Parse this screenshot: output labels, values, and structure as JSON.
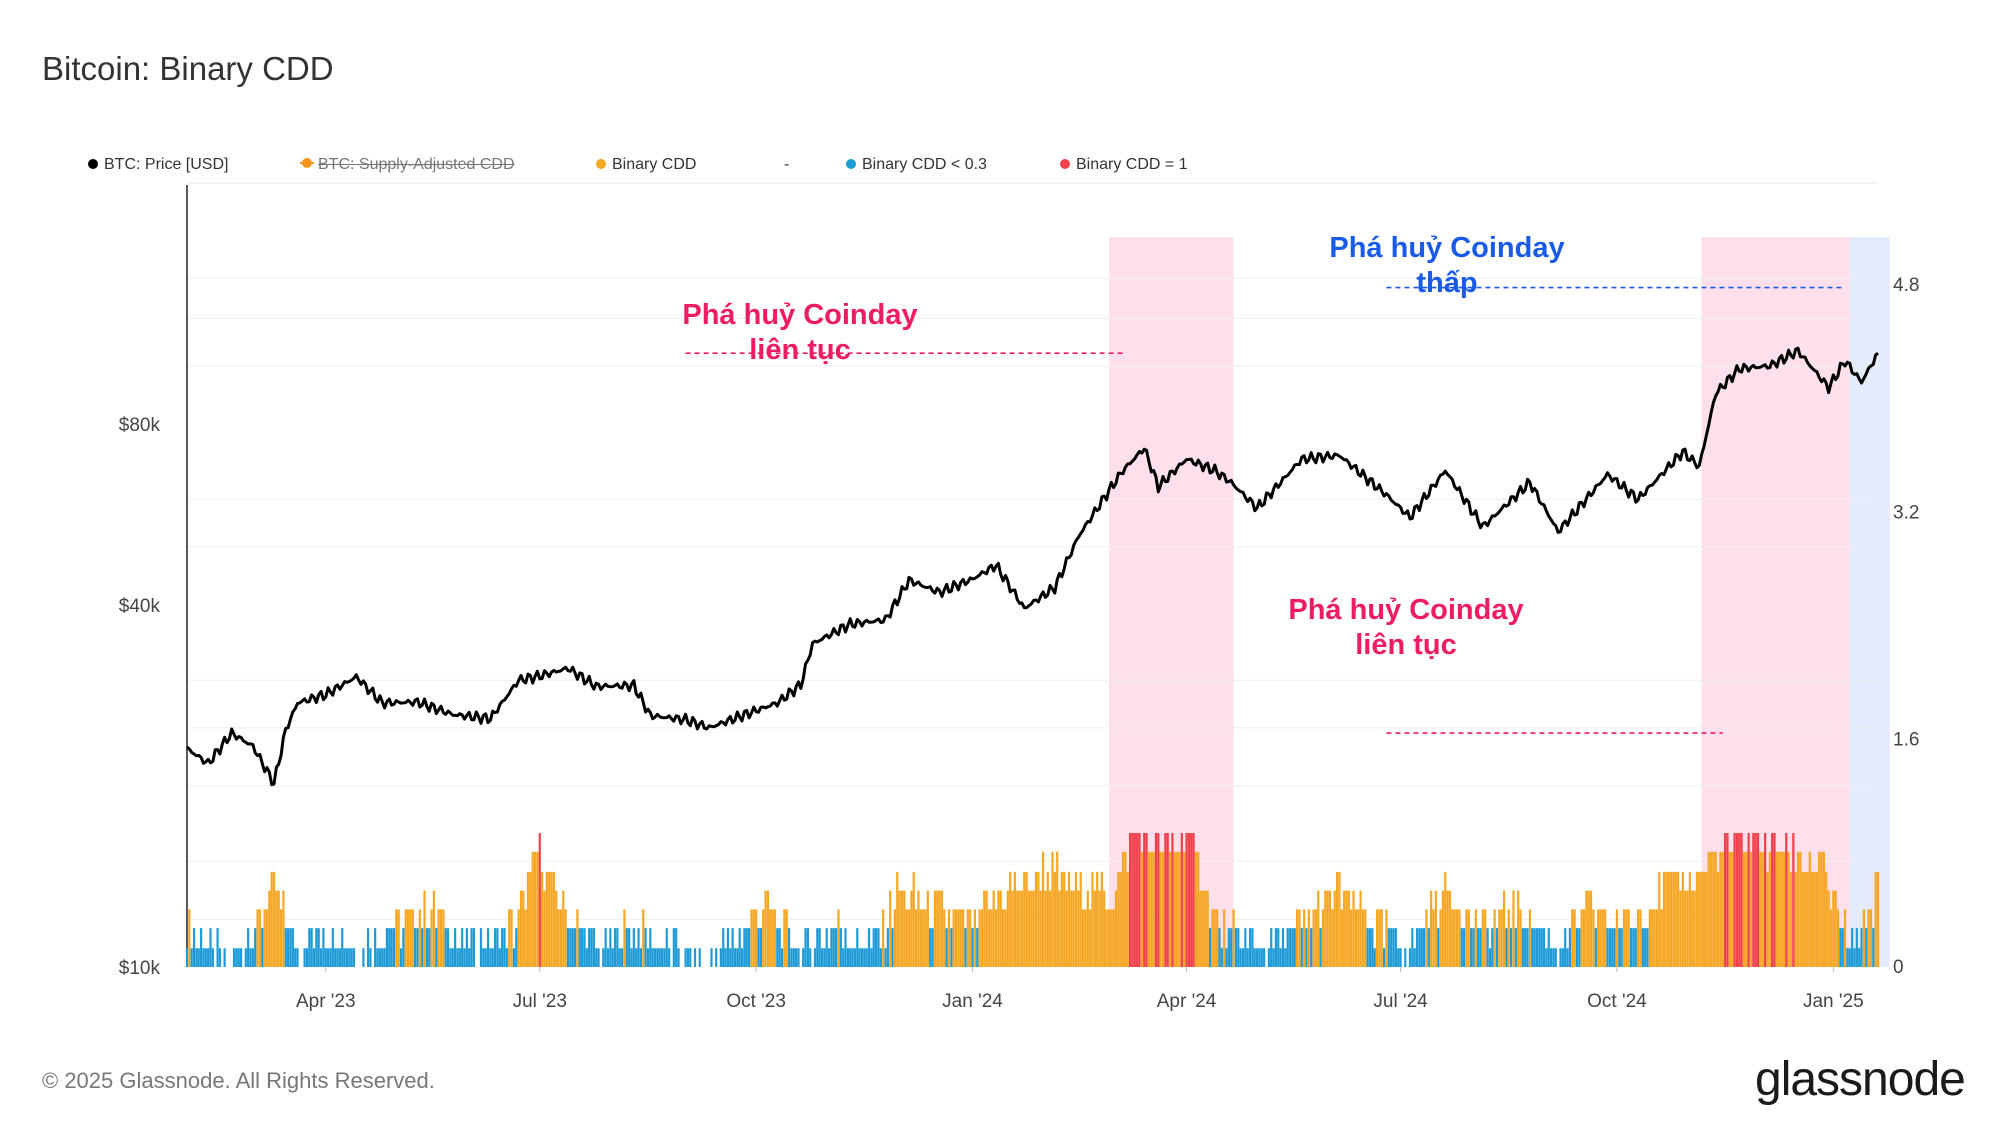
{
  "title": "Bitcoin: Binary CDD",
  "footer": "© 2025 Glassnode. All Rights Reserved.",
  "logo": "glassnode",
  "colors": {
    "price": "#000000",
    "supply_adjusted": "#f7931a",
    "binary_cdd": "#f5a623",
    "binary_low": "#1e9bd7",
    "binary_one": "#f0404a",
    "pink_band": "#fde0ec",
    "blue_band": "#e3ecfd",
    "anno_red": "#ee1c64",
    "anno_blue": "#1a5ae8",
    "grid": "#eeeeee"
  },
  "legend": [
    {
      "label": "BTC: Price [USD]",
      "color": "#000000",
      "style": "dot",
      "hidden": false
    },
    {
      "label": "BTC: Supply-Adjusted CDD",
      "color": "#f7931a",
      "style": "dash-dot",
      "hidden": true
    },
    {
      "label": "Binary CDD",
      "color": "#f5a623",
      "style": "dot",
      "hidden": false
    },
    {
      "label": "-",
      "color": "",
      "style": "none",
      "hidden": false
    },
    {
      "label": "Binary CDD < 0.3",
      "color": "#1e9bd7",
      "style": "dot",
      "hidden": false
    },
    {
      "label": "Binary CDD = 1",
      "color": "#f0404a",
      "style": "dot",
      "hidden": false
    }
  ],
  "annotations": [
    {
      "text": [
        "Phá huỷ Coinday",
        "liên tục"
      ],
      "color": "#ee1c64",
      "line_from": "2023-09-01",
      "line_to": "2024-03-06",
      "price_level": 105000
    },
    {
      "text": [
        "Phá huỷ Coinday",
        "thấp"
      ],
      "color": "#1a5ae8",
      "line_from": "2024-06-25",
      "line_to": "2025-01-06",
      "price_level": 135000
    },
    {
      "text": [
        "Phá huỷ Coinday",
        "liên tục"
      ],
      "color": "#ee1c64",
      "line_from": "2024-06-25",
      "line_to": "2024-11-15",
      "price_level": 24500
    }
  ],
  "chart_data": {
    "type": "line",
    "title": "Bitcoin: Binary CDD",
    "x_range": [
      "2023-02-01",
      "2025-01-20"
    ],
    "x_ticks": [
      {
        "date": "2023-04-01",
        "label": "Apr '23"
      },
      {
        "date": "2023-07-01",
        "label": "Jul '23"
      },
      {
        "date": "2023-10-01",
        "label": "Oct '23"
      },
      {
        "date": "2024-01-01",
        "label": "Jan '24"
      },
      {
        "date": "2024-04-01",
        "label": "Apr '24"
      },
      {
        "date": "2024-07-01",
        "label": "Jul '24"
      },
      {
        "date": "2024-10-01",
        "label": "Oct '24"
      },
      {
        "date": "2025-01-01",
        "label": "Jan '25"
      }
    ],
    "y_left": {
      "scale": "log",
      "range": [
        10000,
        200000
      ],
      "ticks": [
        {
          "value": 10000,
          "label": "$10k"
        },
        {
          "value": 40000,
          "label": "$40k"
        },
        {
          "value": 80000,
          "label": "$80k"
        }
      ]
    },
    "y_right": {
      "scale": "linear",
      "range": [
        0,
        5.5
      ],
      "ticks": [
        {
          "value": 0,
          "label": "0"
        },
        {
          "value": 1.6,
          "label": "1.6"
        },
        {
          "value": 3.2,
          "label": "3.2"
        },
        {
          "value": 4.8,
          "label": "4.8"
        }
      ]
    },
    "shaded_regions": [
      {
        "from": "2024-02-28",
        "to": "2024-04-21",
        "color": "pink"
      },
      {
        "from": "2024-11-06",
        "to": "2025-01-08",
        "color": "pink"
      },
      {
        "from": "2025-01-08",
        "to": "2025-01-25",
        "color": "blue"
      }
    ],
    "series": [
      {
        "name": "BTC: Price [USD]",
        "axis": "left",
        "points": [
          [
            "2023-02-01",
            23100
          ],
          [
            "2023-02-10",
            21800
          ],
          [
            "2023-02-20",
            24500
          ],
          [
            "2023-03-01",
            23300
          ],
          [
            "2023-03-10",
            20200
          ],
          [
            "2023-03-15",
            24800
          ],
          [
            "2023-03-20",
            27500
          ],
          [
            "2023-04-01",
            28400
          ],
          [
            "2023-04-14",
            30400
          ],
          [
            "2023-04-25",
            27500
          ],
          [
            "2023-05-10",
            27600
          ],
          [
            "2023-05-25",
            26300
          ],
          [
            "2023-06-10",
            25900
          ],
          [
            "2023-06-22",
            30000
          ],
          [
            "2023-07-01",
            30500
          ],
          [
            "2023-07-13",
            31400
          ],
          [
            "2023-07-25",
            29300
          ],
          [
            "2023-08-10",
            29400
          ],
          [
            "2023-08-17",
            26200
          ],
          [
            "2023-09-01",
            25800
          ],
          [
            "2023-09-11",
            25000
          ],
          [
            "2023-09-25",
            26200
          ],
          [
            "2023-10-10",
            27500
          ],
          [
            "2023-10-20",
            29500
          ],
          [
            "2023-10-25",
            34500
          ],
          [
            "2023-11-10",
            37200
          ],
          [
            "2023-11-25",
            37800
          ],
          [
            "2023-12-05",
            44000
          ],
          [
            "2023-12-18",
            42000
          ],
          [
            "2024-01-01",
            44200
          ],
          [
            "2024-01-11",
            46600
          ],
          [
            "2024-01-23",
            39500
          ],
          [
            "2024-02-05",
            42800
          ],
          [
            "2024-02-15",
            52000
          ],
          [
            "2024-02-28",
            62000
          ],
          [
            "2024-03-05",
            67000
          ],
          [
            "2024-03-14",
            73000
          ],
          [
            "2024-03-20",
            63000
          ],
          [
            "2024-04-01",
            70000
          ],
          [
            "2024-04-13",
            67000
          ],
          [
            "2024-04-20",
            64000
          ],
          [
            "2024-05-01",
            58000
          ],
          [
            "2024-05-20",
            70000
          ],
          [
            "2024-06-05",
            71000
          ],
          [
            "2024-06-25",
            61000
          ],
          [
            "2024-07-05",
            56000
          ],
          [
            "2024-07-20",
            67000
          ],
          [
            "2024-08-05",
            54000
          ],
          [
            "2024-08-25",
            64000
          ],
          [
            "2024-09-06",
            53000
          ],
          [
            "2024-09-27",
            66000
          ],
          [
            "2024-10-10",
            60000
          ],
          [
            "2024-10-29",
            72000
          ],
          [
            "2024-11-05",
            68000
          ],
          [
            "2024-11-12",
            90000
          ],
          [
            "2024-11-22",
            99000
          ],
          [
            "2024-12-05",
            100000
          ],
          [
            "2024-12-17",
            106000
          ],
          [
            "2024-12-30",
            92000
          ],
          [
            "2025-01-06",
            102000
          ],
          [
            "2025-01-13",
            94000
          ],
          [
            "2025-01-20",
            105000
          ]
        ]
      },
      {
        "name": "Binary CDD",
        "axis": "right",
        "note": "7-day rolling binary CDD; bar color: blue when < 0.3, orange otherwise, red when = 1",
        "points": [
          [
            "2023-02-01",
            0.29
          ],
          [
            "2023-02-10",
            0.14
          ],
          [
            "2023-02-20",
            0.0
          ],
          [
            "2023-03-01",
            0.29
          ],
          [
            "2023-03-10",
            0.57
          ],
          [
            "2023-03-20",
            0.14
          ],
          [
            "2023-04-01",
            0.29
          ],
          [
            "2023-04-15",
            0.14
          ],
          [
            "2023-05-01",
            0.29
          ],
          [
            "2023-05-15",
            0.43
          ],
          [
            "2023-06-01",
            0.14
          ],
          [
            "2023-06-20",
            0.29
          ],
          [
            "2023-07-01",
            0.86
          ],
          [
            "2023-07-10",
            0.43
          ],
          [
            "2023-07-25",
            0.14
          ],
          [
            "2023-08-10",
            0.29
          ],
          [
            "2023-08-25",
            0.14
          ],
          [
            "2023-09-10",
            0.0
          ],
          [
            "2023-09-25",
            0.29
          ],
          [
            "2023-10-05",
            0.43
          ],
          [
            "2023-10-20",
            0.14
          ],
          [
            "2023-11-05",
            0.29
          ],
          [
            "2023-11-20",
            0.14
          ],
          [
            "2023-12-01",
            0.57
          ],
          [
            "2023-12-15",
            0.43
          ],
          [
            "2024-01-01",
            0.29
          ],
          [
            "2024-01-15",
            0.57
          ],
          [
            "2024-02-01",
            0.71
          ],
          [
            "2024-02-15",
            0.57
          ],
          [
            "2024-03-01",
            0.57
          ],
          [
            "2024-03-10",
            1.0
          ],
          [
            "2024-03-20",
            0.86
          ],
          [
            "2024-04-01",
            1.0
          ],
          [
            "2024-04-15",
            0.29
          ],
          [
            "2024-05-01",
            0.14
          ],
          [
            "2024-05-20",
            0.29
          ],
          [
            "2024-06-05",
            0.57
          ],
          [
            "2024-06-20",
            0.29
          ],
          [
            "2024-07-05",
            0.14
          ],
          [
            "2024-07-20",
            0.57
          ],
          [
            "2024-08-05",
            0.29
          ],
          [
            "2024-08-20",
            0.43
          ],
          [
            "2024-09-05",
            0.14
          ],
          [
            "2024-09-20",
            0.43
          ],
          [
            "2024-10-05",
            0.29
          ],
          [
            "2024-10-20",
            0.57
          ],
          [
            "2024-11-05",
            0.71
          ],
          [
            "2024-11-15",
            0.86
          ],
          [
            "2024-11-25",
            1.0
          ],
          [
            "2024-12-05",
            0.86
          ],
          [
            "2024-12-15",
            0.86
          ],
          [
            "2024-12-28",
            0.71
          ],
          [
            "2025-01-08",
            0.14
          ],
          [
            "2025-01-20",
            0.57
          ]
        ]
      }
    ]
  }
}
